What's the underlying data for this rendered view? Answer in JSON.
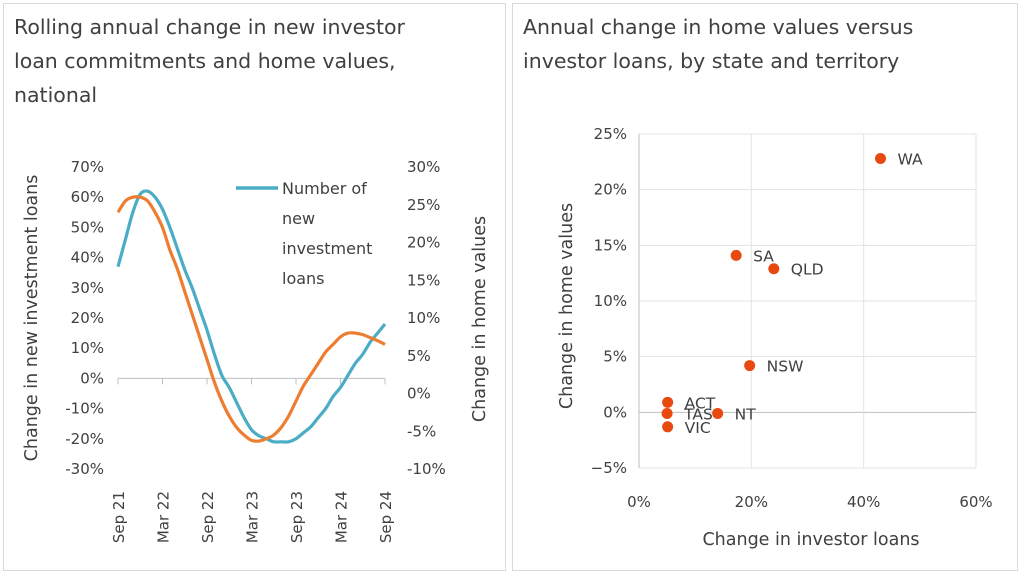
{
  "chart_data": [
    {
      "type": "line",
      "title": "Rolling annual change in new investor loan commitments and home values, national",
      "ylabel": "Change in new investment loans",
      "y2label": "Change in home values",
      "ylim": [
        -0.3,
        0.7
      ],
      "y2lim": [
        -0.1,
        0.3
      ],
      "yticks": [
        "70%",
        "60%",
        "50%",
        "40%",
        "30%",
        "20%",
        "10%",
        "0%",
        "-10%",
        "-20%",
        "-30%"
      ],
      "y2ticks": [
        "30%",
        "25%",
        "20%",
        "15%",
        "10%",
        "5%",
        "0%",
        "-5%",
        "-10%"
      ],
      "xtick_labels": [
        "Sep 21",
        "Mar 22",
        "Sep 22",
        "Mar 23",
        "Sep 23",
        "Mar 24",
        "Sep 24"
      ],
      "x_months": [
        "Sep 21",
        "Oct 21",
        "Nov 21",
        "Dec 21",
        "Jan 22",
        "Feb 22",
        "Mar 22",
        "Apr 22",
        "May 22",
        "Jun 22",
        "Jul 22",
        "Aug 22",
        "Sep 22",
        "Oct 22",
        "Nov 22",
        "Dec 22",
        "Jan 23",
        "Feb 23",
        "Mar 23",
        "Apr 23",
        "May 23",
        "Jun 23",
        "Jul 23",
        "Aug 23",
        "Sep 23",
        "Oct 23",
        "Nov 23",
        "Dec 23",
        "Jan 24",
        "Feb 24",
        "Mar 24",
        "Apr 24",
        "May 24",
        "Jun 24",
        "Jul 24",
        "Aug 24",
        "Sep 24"
      ],
      "legend_position": "top-right",
      "series": [
        {
          "name": "Number of new investment loans",
          "axis": "left",
          "color": "#4bacc6",
          "values": [
            0.37,
            0.46,
            0.55,
            0.61,
            0.62,
            0.6,
            0.56,
            0.5,
            0.43,
            0.36,
            0.3,
            0.23,
            0.16,
            0.08,
            0.01,
            -0.03,
            -0.08,
            -0.13,
            -0.17,
            -0.19,
            -0.2,
            -0.21,
            -0.21,
            -0.21,
            -0.2,
            -0.18,
            -0.16,
            -0.13,
            -0.1,
            -0.06,
            -0.03,
            0.01,
            0.05,
            0.08,
            0.12,
            0.15,
            0.18
          ]
        },
        {
          "name": "Change in home values",
          "axis": "right",
          "color": "#ed7d31",
          "values": [
            0.24,
            0.255,
            0.26,
            0.26,
            0.255,
            0.24,
            0.22,
            0.19,
            0.165,
            0.135,
            0.105,
            0.075,
            0.045,
            0.015,
            -0.01,
            -0.03,
            -0.045,
            -0.055,
            -0.062,
            -0.063,
            -0.06,
            -0.055,
            -0.045,
            -0.03,
            -0.01,
            0.01,
            0.025,
            0.04,
            0.055,
            0.065,
            0.075,
            0.08,
            0.08,
            0.078,
            0.074,
            0.07,
            0.065
          ]
        }
      ]
    },
    {
      "type": "scatter",
      "title": "Annual change in home values versus investor loans, by state and territory",
      "xlabel": "Change in investor loans",
      "ylabel": "Change in home values",
      "xlim": [
        0,
        0.6
      ],
      "ylim": [
        -0.05,
        0.25
      ],
      "xticks": [
        "0%",
        "20%",
        "40%",
        "60%"
      ],
      "yticks": [
        "25%",
        "20%",
        "15%",
        "10%",
        "5%",
        "0%",
        "−5%"
      ],
      "grid": true,
      "color": "#e8490f",
      "points": [
        {
          "label": "WA",
          "x": 0.43,
          "y": 0.228
        },
        {
          "label": "SA",
          "x": 0.173,
          "y": 0.141
        },
        {
          "label": "QLD",
          "x": 0.24,
          "y": 0.129
        },
        {
          "label": "NSW",
          "x": 0.197,
          "y": 0.042
        },
        {
          "label": "ACT",
          "x": 0.051,
          "y": 0.009
        },
        {
          "label": "TAS",
          "x": 0.05,
          "y": -0.001
        },
        {
          "label": "NT",
          "x": 0.14,
          "y": -0.001
        },
        {
          "label": "VIC",
          "x": 0.051,
          "y": -0.013
        }
      ]
    }
  ]
}
